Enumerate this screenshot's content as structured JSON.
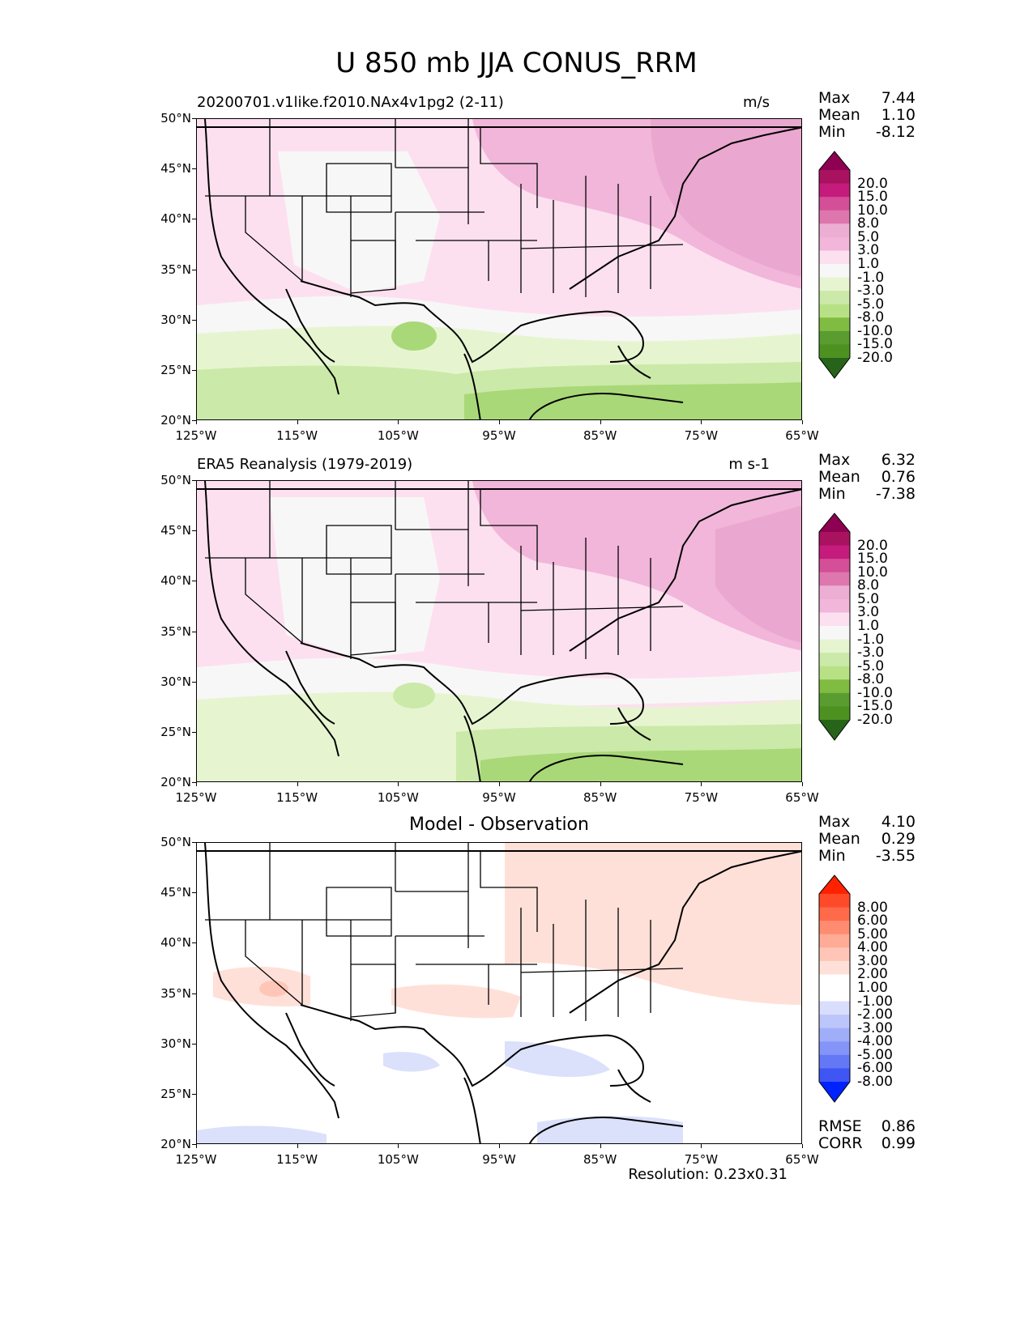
{
  "figure": {
    "title": "U 850 mb JJA CONUS_RRM",
    "footer": "Resolution: 0.23x0.31"
  },
  "axes": {
    "lat_ticks": [
      "50°N",
      "45°N",
      "40°N",
      "35°N",
      "30°N",
      "25°N",
      "20°N"
    ],
    "lon_ticks": [
      "125°W",
      "115°W",
      "105°W",
      "95°W",
      "85°W",
      "75°W",
      "65°W"
    ]
  },
  "panels": [
    {
      "title_left": "20200701.v1like.f2010.NAx4v1pg2 (2-11)",
      "title_right": "m/s",
      "title_center": "",
      "stats": [
        {
          "label": "Max",
          "value": "7.44"
        },
        {
          "label": "Mean",
          "value": "1.10"
        },
        {
          "label": "Min",
          "value": "-8.12"
        }
      ],
      "colorbar_levels": [
        "20.0",
        "15.0",
        "10.0",
        "8.0",
        "5.0",
        "3.0",
        "1.0",
        "-1.0",
        "-3.0",
        "-5.0",
        "-8.0",
        "-10.0",
        "-15.0",
        "-20.0"
      ],
      "colorbar_colors": [
        "#8e0152",
        "#a8125f",
        "#c51b7d",
        "#d44e98",
        "#de77ae",
        "#edaed3",
        "#f1b6da",
        "#fde0ef",
        "#f7f7f7",
        "#e6f5d0",
        "#cbe9a8",
        "#b8e186",
        "#7fbc41",
        "#5a9c30",
        "#4d9221",
        "#276419"
      ]
    },
    {
      "title_left": "ERA5 Reanalysis (1979-2019)",
      "title_right": "m s-1",
      "title_center": "",
      "stats": [
        {
          "label": "Max",
          "value": "6.32"
        },
        {
          "label": "Mean",
          "value": "0.76"
        },
        {
          "label": "Min",
          "value": "-7.38"
        }
      ],
      "colorbar_levels": [
        "20.0",
        "15.0",
        "10.0",
        "8.0",
        "5.0",
        "3.0",
        "1.0",
        "-1.0",
        "-3.0",
        "-5.0",
        "-8.0",
        "-10.0",
        "-15.0",
        "-20.0"
      ],
      "colorbar_colors": [
        "#8e0152",
        "#a8125f",
        "#c51b7d",
        "#d44e98",
        "#de77ae",
        "#edaed3",
        "#f1b6da",
        "#fde0ef",
        "#f7f7f7",
        "#e6f5d0",
        "#cbe9a8",
        "#b8e186",
        "#7fbc41",
        "#5a9c30",
        "#4d9221",
        "#276419"
      ]
    },
    {
      "title_left": "",
      "title_right": "",
      "title_center": "Model - Observation",
      "stats": [
        {
          "label": "Max",
          "value": "4.10"
        },
        {
          "label": "Mean",
          "value": "0.29"
        },
        {
          "label": "Min",
          "value": "-3.55"
        }
      ],
      "colorbar_levels": [
        "8.00",
        "6.00",
        "5.00",
        "4.00",
        "3.00",
        "2.00",
        "1.00",
        "-1.00",
        "-2.00",
        "-3.00",
        "-4.00",
        "-5.00",
        "-6.00",
        "-8.00"
      ],
      "colorbar_colors": [
        "#ff2200",
        "#ff4a2a",
        "#ff6a4a",
        "#ff8c70",
        "#ffab96",
        "#ffc6b8",
        "#ffe0d8",
        "#ffffff",
        "#ffffff",
        "#d8defc",
        "#bcc6fb",
        "#a0aefa",
        "#8494f8",
        "#6478f6",
        "#3f55f4",
        "#0022ff"
      ],
      "summary": [
        {
          "label": "RMSE",
          "value": "0.86"
        },
        {
          "label": "CORR",
          "value": "0.99"
        }
      ]
    }
  ],
  "colors": {
    "pink_light": "#fde0ef",
    "pink_mid": "#f1b6da",
    "pink_strong": "#eaa7cf",
    "neutral": "#f7f7f7",
    "green_light": "#e6f5d0",
    "green_mid": "#cbe9a8",
    "green_strong": "#a9d878",
    "diff_pos": "#ffe0d8",
    "diff_pos_strong": "#ffc6b8",
    "diff_neg": "#dbe0fb",
    "coast": "#000000"
  }
}
